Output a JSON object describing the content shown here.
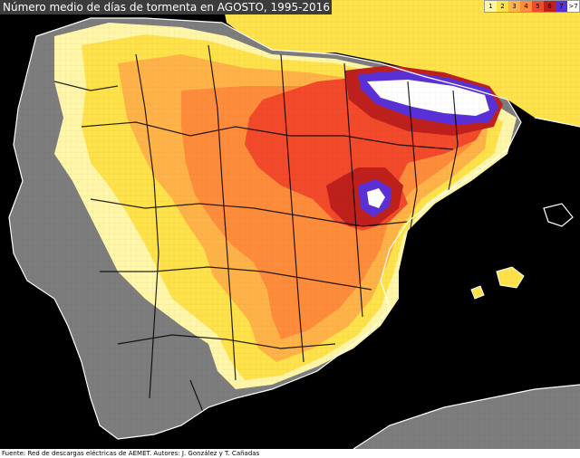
{
  "title": "Número medio de días de tormenta en AGOSTO, 1995-2016",
  "footer": "Fuente: Red de descargas eléctricas de AEMET. Autores: J. González y T. Cañadas",
  "legend": [
    {
      "label": "1",
      "color": "#fff6a8"
    },
    {
      "label": "2",
      "color": "#ffe24a"
    },
    {
      "label": "3",
      "color": "#ffb347"
    },
    {
      "label": "4",
      "color": "#ff8c3a"
    },
    {
      "label": "5",
      "color": "#f24a2a"
    },
    {
      "label": "6",
      "color": "#c0201c"
    },
    {
      "label": "7",
      "color": "#5a31d8"
    },
    {
      "label": ">7",
      "color": "#ffffff"
    }
  ],
  "colors": {
    "sea": "#000000",
    "land_no_data": "#7d7d7d",
    "borders": "#000000",
    "coast": "#ffffff"
  }
}
